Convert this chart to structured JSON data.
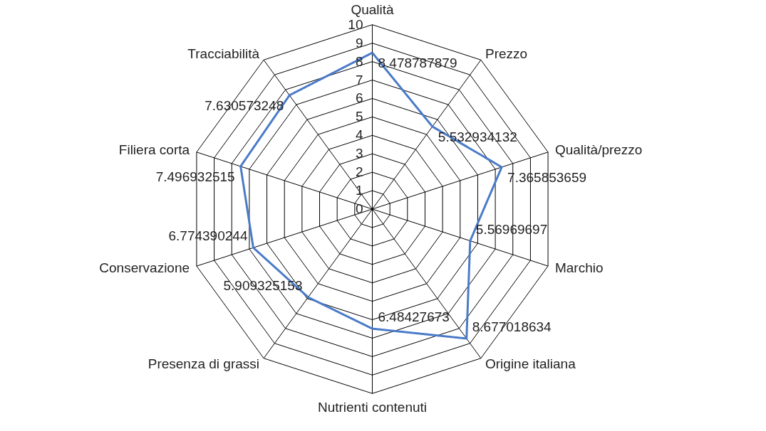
{
  "chart_data": {
    "type": "radar",
    "categories": [
      "Qualità",
      "Prezzo",
      "Qualità/prezzo",
      "Marchio",
      "Origine italiana",
      "Nutrienti contenuti",
      "Presenza di grassi",
      "Conservazione",
      "Filiera corta",
      "Tracciabilità"
    ],
    "series": [
      {
        "color": "#4a7bc8",
        "values": [
          8.478787879,
          5.532934132,
          7.365853659,
          5.56969697,
          8.677018634,
          6.48427673,
          5.909325153,
          6.774390244,
          7.496932515,
          7.630573248
        ]
      }
    ],
    "ylim": [
      0,
      10
    ],
    "yticks": [
      0,
      1,
      2,
      3,
      4,
      5,
      6,
      7,
      8,
      9,
      10
    ],
    "data_labels": true,
    "grid": true,
    "legend": false,
    "marker": "none",
    "line_style": "solid"
  }
}
